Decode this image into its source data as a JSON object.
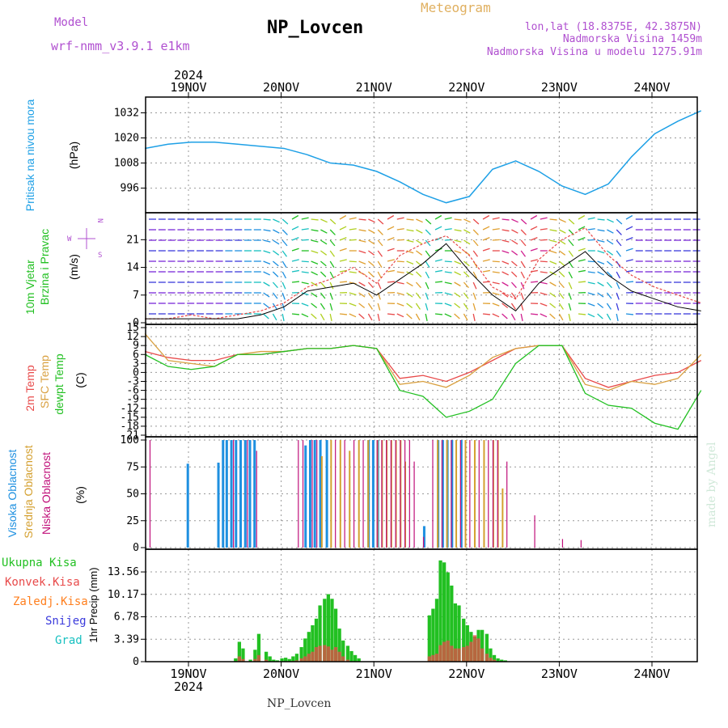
{
  "header": {
    "model_label": "Model",
    "model_name": "wrf-nmm_v3.9.1  e1km",
    "station": "NP_Lovcen",
    "meteogram_label": "Meteogram",
    "lonlat": "lon,lat (18.8375E, 42.3875N)",
    "altitude": "Nadmorska Visina 1459m",
    "model_altitude": "Nadmorska Visina u modelu 1275.91m",
    "footer_station": "NP_Lovcen",
    "credit": "made by Angel"
  },
  "colors": {
    "pressure": "#1ea0e6",
    "temp_2m": "#e84a4a",
    "temp_sfc": "#d9a040",
    "dewpoint": "#22c022",
    "cloud_high": "#1e90e0",
    "cloud_mid": "#d4a030",
    "cloud_low": "#c0107a",
    "precip_total": "#22c022",
    "precip_conv": "#e84a4a",
    "precip_frz": "#ff7f1e",
    "precip_snow": "#3a3adc",
    "precip_grad": "#17c0c0",
    "header_purple": "#b050d0",
    "header_gold": "#e0b060"
  },
  "chart_data": [
    {
      "type": "line",
      "id": "pressure",
      "ylabel_title": "Pritisak na nivou mora",
      "ylabel_unit": "(hPa)",
      "ylim": [
        985,
        1038
      ],
      "yticks": [
        996,
        1008,
        1020,
        1032
      ],
      "grid": true,
      "x_day_index": [
        0.0,
        0.25,
        0.5,
        0.75,
        1.0,
        1.25,
        1.5,
        1.75,
        2.0,
        2.25,
        2.5,
        2.75,
        3.0,
        3.25,
        3.5,
        3.75,
        4.0,
        4.25,
        4.5,
        4.75,
        5.0,
        5.25,
        5.5,
        5.75,
        6.0
      ],
      "series": [
        {
          "values": [
            1015,
            1017,
            1018,
            1018,
            1017,
            1016,
            1015,
            1012,
            1008,
            1007,
            1004,
            999,
            993,
            989,
            992,
            1005,
            1009,
            1004,
            997,
            993,
            998,
            1011,
            1022,
            1028,
            1033
          ]
        }
      ]
    },
    {
      "type": "line",
      "id": "wind",
      "ylabel_title": "10m Vjetar Brzina i Pravac",
      "ylabel_unit": "(m/s)",
      "compass": "N\nW -|- E\nS",
      "ylim": [
        0,
        27
      ],
      "yticks": [
        0,
        7,
        14,
        21
      ],
      "grid": true,
      "x_day_index": [
        0.0,
        0.25,
        0.5,
        0.75,
        1.0,
        1.25,
        1.5,
        1.75,
        2.0,
        2.25,
        2.5,
        2.75,
        3.0,
        3.25,
        3.5,
        3.75,
        4.0,
        4.25,
        4.5,
        4.75,
        5.0,
        5.25,
        5.5,
        5.75,
        6.0
      ],
      "series": [
        {
          "name": "speed",
          "values": [
            1,
            1,
            1,
            1,
            1,
            2,
            4,
            8,
            9,
            10,
            7,
            11,
            15,
            20,
            13,
            7,
            3,
            10,
            14,
            18,
            12,
            8,
            6,
            4,
            3
          ]
        },
        {
          "name": "gust",
          "values": [
            1,
            1,
            2,
            1,
            2,
            3,
            5,
            9,
            11,
            14,
            10,
            17,
            20,
            22,
            17,
            9,
            6,
            16,
            21,
            24,
            17,
            12,
            9,
            7,
            5
          ]
        }
      ]
    },
    {
      "type": "line",
      "id": "temperature",
      "ylabel_title_1": "2m Temp",
      "ylabel_title_2": "SFC Temp",
      "ylabel_title_3": "dewpt Temp",
      "ylabel_unit": "(C)",
      "ylim": [
        -21,
        15
      ],
      "yticks": [
        -21,
        -18,
        -15,
        -12,
        -9,
        -6,
        -3,
        0,
        3,
        6,
        9,
        12,
        15
      ],
      "grid": true,
      "x_day_index": [
        0.0,
        0.25,
        0.5,
        0.75,
        1.0,
        1.25,
        1.5,
        1.75,
        2.0,
        2.25,
        2.5,
        2.75,
        3.0,
        3.25,
        3.5,
        3.75,
        4.0,
        4.25,
        4.5,
        4.75,
        5.0,
        5.25,
        5.5,
        5.75,
        6.0
      ],
      "series": [
        {
          "name": "2m",
          "values": [
            7,
            5,
            4,
            4,
            6,
            6,
            7,
            8,
            8,
            9,
            8,
            -2,
            -1,
            -3,
            0,
            4,
            8,
            9,
            9,
            -2,
            -5,
            -3,
            -1,
            0,
            4
          ]
        },
        {
          "name": "sfc",
          "values": [
            13,
            4,
            3,
            2,
            6,
            7,
            7,
            8,
            8,
            9,
            8,
            -4,
            -3,
            -5,
            -1,
            5,
            8,
            9,
            9,
            -4,
            -6,
            -3,
            -4,
            -2,
            6
          ]
        },
        {
          "name": "dew",
          "values": [
            6,
            2,
            1,
            2,
            6,
            6,
            7,
            8,
            8,
            9,
            8,
            -6,
            -8,
            -15,
            -13,
            -9,
            3,
            9,
            9,
            -7,
            -11,
            -12,
            -17,
            -19,
            -6
          ]
        }
      ]
    },
    {
      "type": "bar",
      "id": "clouds",
      "ylabel_title_1": "Visoka Oblacnost",
      "ylabel_title_2": "Srednja Oblacnost",
      "ylabel_title_3": "Niska Oblacnost",
      "ylabel_unit": "(%)",
      "ylim": [
        0,
        100
      ],
      "yticks": [
        0,
        25,
        50,
        75,
        100
      ],
      "grid": true,
      "series": [
        {
          "name": "high",
          "x_day_index": [
            0.45,
            0.78,
            0.83,
            0.87,
            0.92,
            0.97,
            1.02,
            1.07,
            1.12,
            1.17,
            1.72,
            1.77,
            1.82,
            1.88,
            1.95,
            2.4,
            2.45,
            2.5,
            3.0,
            3.15,
            3.2,
            3.25,
            3.3,
            3.4
          ],
          "values": [
            78,
            79,
            100,
            100,
            100,
            100,
            100,
            100,
            100,
            100,
            95,
            100,
            100,
            100,
            100,
            100,
            100,
            100,
            20,
            100,
            100,
            100,
            100,
            100
          ]
        },
        {
          "name": "mid",
          "x_day_index": [
            1.9,
            2.0,
            2.1,
            2.2,
            2.3,
            2.4,
            2.5,
            2.55,
            2.6,
            2.65,
            2.7,
            2.75,
            2.8,
            3.15,
            3.25,
            3.35,
            3.45,
            3.55,
            3.65,
            3.75,
            3.8,
            3.85
          ],
          "values": [
            85,
            100,
            100,
            90,
            100,
            100,
            100,
            100,
            100,
            100,
            100,
            100,
            80,
            100,
            100,
            100,
            100,
            100,
            100,
            100,
            100,
            55
          ]
        },
        {
          "name": "low",
          "x_day_index": [
            0.05,
            0.95,
            1.1,
            1.2,
            1.65,
            1.7,
            1.8,
            1.85,
            2.05,
            2.15,
            2.25,
            2.35,
            2.5,
            2.55,
            2.6,
            2.65,
            2.7,
            2.75,
            2.8,
            2.85,
            2.9,
            3.0,
            3.1,
            3.2,
            3.3,
            3.4,
            3.5,
            3.6,
            3.7,
            3.75,
            3.8,
            3.9,
            4.2,
            4.5,
            4.7
          ],
          "values": [
            100,
            100,
            100,
            90,
            100,
            100,
            100,
            100,
            100,
            100,
            100,
            100,
            100,
            100,
            100,
            100,
            100,
            100,
            100,
            100,
            80,
            10,
            100,
            100,
            100,
            100,
            100,
            100,
            100,
            100,
            100,
            80,
            30,
            8,
            7
          ]
        }
      ]
    },
    {
      "type": "bar",
      "id": "precip",
      "ylabel_unit": "1hr Precip (mm)",
      "legend": [
        "Ukupna Kisa",
        "Konvek.Kisa",
        "Zaledj.Kisa",
        "Snijeg",
        "Grad"
      ],
      "ylim": [
        0,
        16.5
      ],
      "yticks": [
        0,
        3.39,
        6.78,
        10.17,
        13.56
      ],
      "ytick_labels": [
        "0",
        "3.39",
        "6.78",
        "10.17",
        "13.56"
      ],
      "grid": true,
      "x_day_index": [
        0.96,
        1.0,
        1.04,
        1.12,
        1.17,
        1.21,
        1.29,
        1.33,
        1.37,
        1.41,
        1.46,
        1.5,
        1.54,
        1.58,
        1.62,
        1.67,
        1.71,
        1.75,
        1.79,
        1.83,
        1.87,
        1.92,
        1.96,
        2.0,
        2.04,
        2.08,
        2.12,
        2.17,
        2.21,
        2.25,
        2.29,
        3.05,
        3.09,
        3.13,
        3.17,
        3.21,
        3.25,
        3.29,
        3.33,
        3.37,
        3.42,
        3.46,
        3.5,
        3.54,
        3.58,
        3.62,
        3.67,
        3.71,
        3.75,
        3.79,
        3.83,
        3.87
      ],
      "series": [
        {
          "name": "Ukupna Kisa",
          "values": [
            0.5,
            3.0,
            2.0,
            0.3,
            1.8,
            4.2,
            1.5,
            0.8,
            0.3,
            0.2,
            0.5,
            0.6,
            0.4,
            0.8,
            1.2,
            2.2,
            3.5,
            4.5,
            5.5,
            6.5,
            8.5,
            9.5,
            10.2,
            9.5,
            8.0,
            5.0,
            3.2,
            2.4,
            1.6,
            1.0,
            0.5,
            7.0,
            8.0,
            9.5,
            15.3,
            15.0,
            13.5,
            11.5,
            8.8,
            8.5,
            6.5,
            5.5,
            4.5,
            3.8,
            4.8,
            4.8,
            4.2,
            2.0,
            1.0,
            0.5,
            0.3,
            0.2
          ]
        },
        {
          "name": "Konvek.Kisa",
          "values": [
            0,
            0.8,
            0.4,
            0,
            0.4,
            1.0,
            0.3,
            0,
            0,
            0,
            0,
            0,
            0,
            0.1,
            0.2,
            0.5,
            0.8,
            1.2,
            1.5,
            2.2,
            2.4,
            2.5,
            2.3,
            1.8,
            2.2,
            1.5,
            0.8,
            0.3,
            0,
            0,
            0,
            0.8,
            1.0,
            1.2,
            2.5,
            3.0,
            3.2,
            2.4,
            2.0,
            2.0,
            2.2,
            2.4,
            3.0,
            4.0,
            3.5,
            2.0,
            1.2,
            0.6,
            0.3,
            0,
            0,
            0
          ]
        }
      ]
    }
  ],
  "time_axis": {
    "year": "2024",
    "day_labels": [
      "19NOV",
      "20NOV",
      "21NOV",
      "22NOV",
      "23NOV",
      "24NOV"
    ]
  }
}
